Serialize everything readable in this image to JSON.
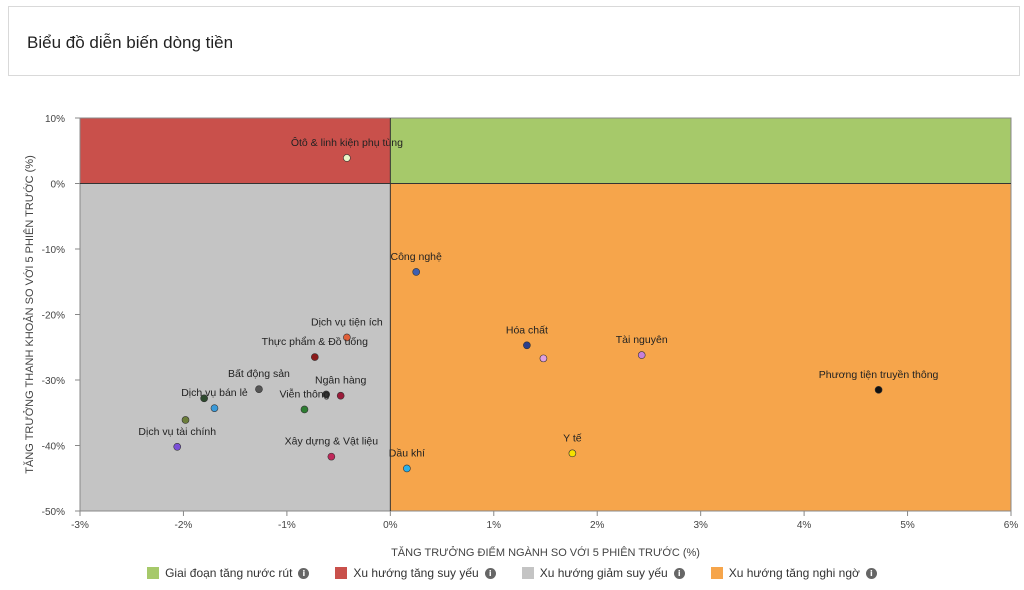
{
  "header": {
    "title": "Biểu đồ diễn biến dòng tiền"
  },
  "chart_data": {
    "type": "scatter",
    "xlabel": "TĂNG TRƯỞNG ĐIỂM NGÀNH SO VỚI 5 PHIÊN TRƯỚC (%)",
    "ylabel": "TĂNG TRƯỞNG THANH KHOẢN SO VỚI 5 PHIÊN TRƯỚC (%)",
    "xlim": [
      -3,
      6
    ],
    "ylim": [
      -50,
      10
    ],
    "xticks": [
      -3,
      -2,
      -1,
      0,
      1,
      2,
      3,
      4,
      5,
      6
    ],
    "yticks": [
      -50,
      -40,
      -30,
      -20,
      -10,
      0,
      10
    ],
    "xtick_labels": [
      "-3%",
      "-2%",
      "-1%",
      "0%",
      "1%",
      "2%",
      "3%",
      "4%",
      "5%",
      "6%"
    ],
    "ytick_labels": [
      "-50%",
      "-40%",
      "-30%",
      "-20%",
      "-10%",
      "0%",
      "10%"
    ],
    "quadrants": [
      {
        "name": "Giai đoạn tăng nước rút",
        "color": "#a6c96a",
        "x": [
          0,
          6
        ],
        "y": [
          0,
          10
        ]
      },
      {
        "name": "Xu hướng tăng suy yếu",
        "color": "#c9504b",
        "x": [
          -3,
          0
        ],
        "y": [
          0,
          10
        ]
      },
      {
        "name": "Xu hướng giảm suy yếu",
        "color": "#c4c4c4",
        "x": [
          -3,
          0
        ],
        "y": [
          -50,
          0
        ]
      },
      {
        "name": "Xu hướng tăng nghi ngờ",
        "color": "#f6a54b",
        "x": [
          0,
          6
        ],
        "y": [
          -50,
          0
        ]
      }
    ],
    "points": [
      {
        "label": "Ôtô & linh kiện phụ tùng",
        "x": -0.42,
        "y": 3.9,
        "color": "#e8f5c8"
      },
      {
        "label": "Công nghệ",
        "x": 0.25,
        "y": -13.5,
        "color": "#3f5fb0"
      },
      {
        "label": "Dịch vụ tiện ích",
        "x": -0.42,
        "y": -23.5,
        "color": "#e0603a"
      },
      {
        "label": "Thực phẩm & Đồ uống",
        "x": -0.73,
        "y": -26.5,
        "color": "#8b1a1a"
      },
      {
        "label": "Hóa chất",
        "x": 1.32,
        "y": -24.7,
        "color": "#2b3e8c"
      },
      {
        "label": "",
        "x": 1.48,
        "y": -26.7,
        "color": "#e0a0e0"
      },
      {
        "label": "Tài nguyên",
        "x": 2.43,
        "y": -26.2,
        "color": "#c77fd8"
      },
      {
        "label": "Bất động sản",
        "x": -1.27,
        "y": -31.4,
        "color": "#555555"
      },
      {
        "label": "Ngân hàng",
        "x": -0.48,
        "y": -32.4,
        "color": "#9b1b3a"
      },
      {
        "label": "",
        "x": -0.62,
        "y": -32.2,
        "color": "#333333"
      },
      {
        "label": "Dịch vụ bán lẻ",
        "x": -1.7,
        "y": -34.3,
        "color": "#3a9ad9"
      },
      {
        "label": "",
        "x": -1.8,
        "y": -32.8,
        "color": "#2e4a2e"
      },
      {
        "label": "Viễn thông",
        "x": -0.83,
        "y": -34.5,
        "color": "#2e7d32"
      },
      {
        "label": "",
        "x": -1.98,
        "y": -36.1,
        "color": "#6b7d3a"
      },
      {
        "label": "Phương tiện truyền thông",
        "x": 4.72,
        "y": -31.5,
        "color": "#111111"
      },
      {
        "label": "Dịch vụ tài chính",
        "x": -2.06,
        "y": -40.2,
        "color": "#7b4fd8"
      },
      {
        "label": "Xây dựng & Vật liệu",
        "x": -0.57,
        "y": -41.7,
        "color": "#c0285a"
      },
      {
        "label": "Y tế",
        "x": 1.76,
        "y": -41.2,
        "color": "#f5e100"
      },
      {
        "label": "Dầu khí",
        "x": 0.16,
        "y": -43.5,
        "color": "#2ab0e8"
      }
    ],
    "legend": {
      "placement": "bottom"
    }
  },
  "legend": {
    "items": [
      {
        "label": "Giai đoạn tăng nước rút",
        "color": "#a6c96a"
      },
      {
        "label": "Xu hướng tăng suy yếu",
        "color": "#c9504b"
      },
      {
        "label": "Xu hướng giảm suy yếu",
        "color": "#c4c4c4"
      },
      {
        "label": "Xu hướng tăng nghi ngờ",
        "color": "#f6a54b"
      }
    ],
    "info_icon": "info-icon"
  }
}
